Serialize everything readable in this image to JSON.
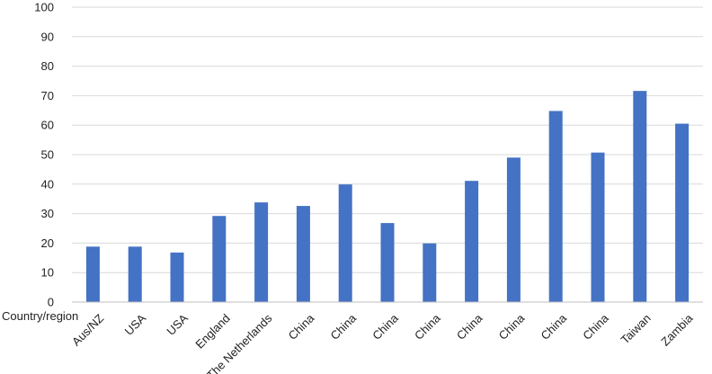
{
  "chart_data": {
    "type": "bar",
    "title": "",
    "xlabel": "Country/region",
    "ylabel": "",
    "ylim": [
      0,
      100
    ],
    "yticks": [
      0,
      10,
      20,
      30,
      40,
      50,
      60,
      70,
      80,
      90,
      100
    ],
    "grid": true,
    "categories": [
      "Aus/NZ",
      "USA",
      "USA",
      "England",
      "The Netherlands",
      "China",
      "China",
      "China",
      "China",
      "China",
      "China",
      "China",
      "China",
      "Taiwan",
      "Zambia"
    ],
    "values": [
      18.8,
      18.8,
      16.8,
      29.2,
      33.8,
      32.6,
      39.9,
      26.8,
      19.9,
      41.1,
      49.0,
      64.8,
      50.7,
      71.6,
      60.5
    ],
    "bar_color": "#4472c4"
  }
}
